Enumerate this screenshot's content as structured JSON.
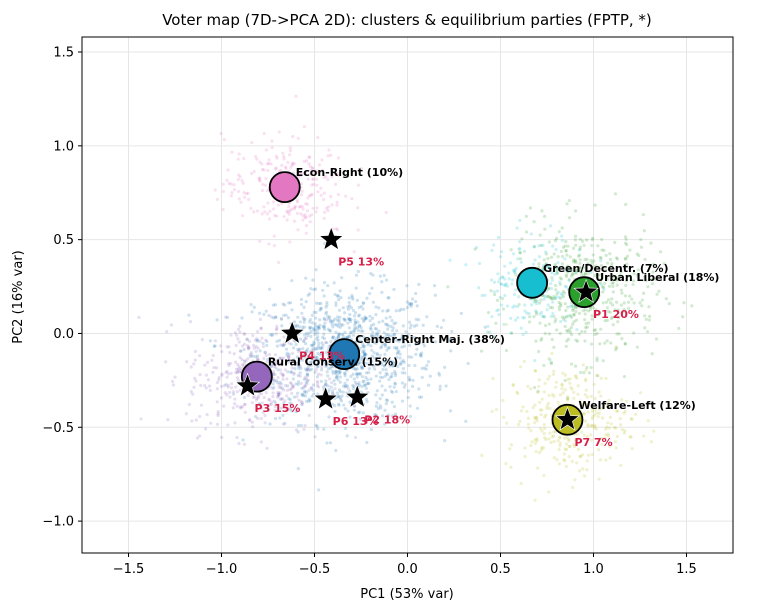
{
  "chart_data": {
    "type": "scatter",
    "title": "Voter map (7D->PCA 2D): clusters & equilibrium parties (FPTP, *)",
    "xlabel": "PC1 (53% var)",
    "ylabel": "PC2 (16% var)",
    "xlim": [
      -1.75,
      1.75
    ],
    "ylim": [
      -1.17,
      1.58
    ],
    "xticks": [
      -1.5,
      -1.0,
      -0.5,
      0.0,
      0.5,
      1.0,
      1.5
    ],
    "xtick_labels": [
      "−1.5",
      "−1.0",
      "−0.5",
      "0.0",
      "0.5",
      "1.0",
      "1.5"
    ],
    "yticks": [
      -1.0,
      -0.5,
      0.0,
      0.5,
      1.0,
      1.5
    ],
    "ytick_labels": [
      "−1.0",
      "−0.5",
      "0.0",
      "0.5",
      "1.0",
      "1.5"
    ],
    "grid": true,
    "clusters": [
      {
        "label": "Center-Right Maj. (38%)",
        "x": -0.34,
        "y": -0.11,
        "color": "#1f77b4",
        "spread_x": 0.32,
        "spread_y": 0.24,
        "share": 0.38
      },
      {
        "label": "Urban Liberal (18%)",
        "x": 0.95,
        "y": 0.22,
        "color": "#2ca02c",
        "spread_x": 0.26,
        "spread_y": 0.24,
        "share": 0.18
      },
      {
        "label": "Rural Conserv. (15%)",
        "x": -0.81,
        "y": -0.23,
        "color": "#9467bd",
        "spread_x": 0.25,
        "spread_y": 0.2,
        "share": 0.15
      },
      {
        "label": "Welfare-Left (12%)",
        "x": 0.86,
        "y": -0.46,
        "color": "#bcbd22",
        "spread_x": 0.22,
        "spread_y": 0.19,
        "share": 0.12
      },
      {
        "label": "Econ-Right (10%)",
        "x": -0.66,
        "y": 0.78,
        "color": "#e377c2",
        "spread_x": 0.22,
        "spread_y": 0.18,
        "share": 0.1
      },
      {
        "label": "Green/Decentr. (7%)",
        "x": 0.67,
        "y": 0.27,
        "color": "#17becf",
        "spread_x": 0.2,
        "spread_y": 0.18,
        "share": 0.07
      }
    ],
    "parties": [
      {
        "label": "P1 20%",
        "x": 0.96,
        "y": 0.22
      },
      {
        "label": "P2 18%",
        "x": -0.27,
        "y": -0.34
      },
      {
        "label": "P3 15%",
        "x": -0.86,
        "y": -0.28
      },
      {
        "label": "P4 13%",
        "x": -0.62,
        "y": 0.0
      },
      {
        "label": "P5 13%",
        "x": -0.41,
        "y": 0.5
      },
      {
        "label": "P6 13%",
        "x": -0.44,
        "y": -0.35
      },
      {
        "label": "P7 7%",
        "x": 0.86,
        "y": -0.46
      }
    ]
  }
}
